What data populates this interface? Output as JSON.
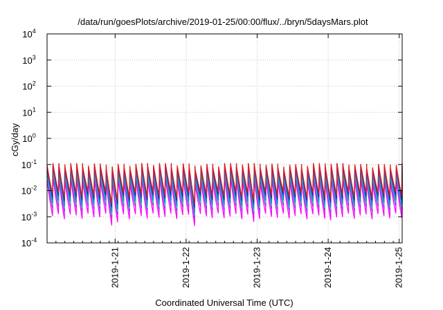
{
  "chart_data": {
    "type": "line",
    "title": "/data/run/goesPlots/archive/2019-01-25/00:00/flux/../bryn/5daysMars.plot",
    "xlabel": "Coordinated Universal Time (UTC)",
    "ylabel": "cGy/day",
    "x_range": [
      "2019-01-20T01:00",
      "2019-01-25T01:00"
    ],
    "x_ticks": [
      "2019-1-21",
      "2019-1-22",
      "2019-1-23",
      "2019-1-24",
      "2019-1-25"
    ],
    "y_scale": "log",
    "ylim": [
      0.0001,
      10000
    ],
    "y_ticks": [
      {
        "base": "10",
        "exp": "-4"
      },
      {
        "base": "10",
        "exp": "-3"
      },
      {
        "base": "10",
        "exp": "-2"
      },
      {
        "base": "10",
        "exp": "-1"
      },
      {
        "base": "10",
        "exp": "0"
      },
      {
        "base": "10",
        "exp": "1"
      },
      {
        "base": "10",
        "exp": "2"
      },
      {
        "base": "10",
        "exp": "3"
      },
      {
        "base": "10",
        "exp": "4"
      }
    ],
    "grid": true,
    "legend": "none",
    "pattern": {
      "description_values": "sawtooth ~ every 2 hours",
      "period_hours": 2,
      "peak_values": [
        0.09,
        0.075,
        0.06,
        0.05,
        0.04,
        0.03,
        0.02
      ],
      "trough_values": [
        0.006,
        0.004,
        0.003,
        0.0025,
        0.002,
        0.0015,
        0.001
      ]
    },
    "series": [
      {
        "color": "#e41a1c",
        "peak": 0.095,
        "trough": 0.0075
      },
      {
        "color": "#1f2fbf",
        "peak": 0.085,
        "trough": 0.0055
      },
      {
        "color": "#3b6fd8",
        "peak": 0.07,
        "trough": 0.0045
      },
      {
        "color": "#00a0a0",
        "peak": 0.055,
        "trough": 0.0035
      },
      {
        "color": "#2ecfcf",
        "peak": 0.045,
        "trough": 0.0028
      },
      {
        "color": "#a020f0",
        "peak": 0.035,
        "trough": 0.0021
      },
      {
        "color": "#ff00ff",
        "peak": 0.025,
        "trough": 0.0011
      }
    ]
  }
}
